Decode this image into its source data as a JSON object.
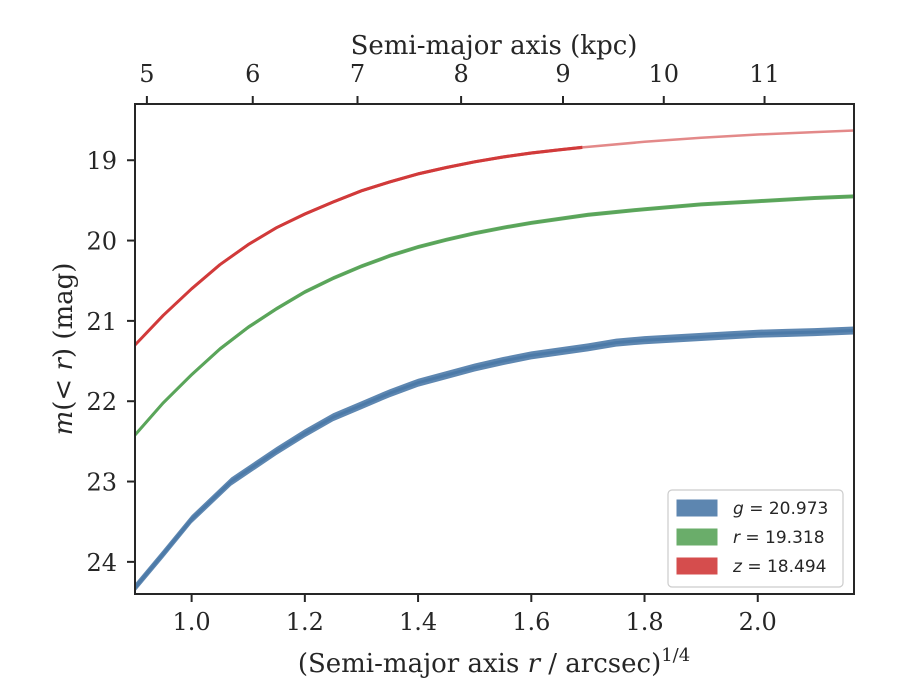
{
  "chart_data": {
    "type": "line",
    "title": "",
    "xlabel": "(Semi-major axis r / arcsec)^{1/4}",
    "xlabel_parts": {
      "pre": "(Semi-major axis ",
      "var": "r",
      "post": " / arcsec)",
      "sup": "1/4"
    },
    "ylabel": "m(< r) (mag)",
    "ylabel_parts": {
      "var": "m",
      "mid": "(< ",
      "var2": "r",
      "post": ") (mag)"
    },
    "top_xlabel": "Semi-major axis (kpc)",
    "xlim": [
      0.9,
      2.17
    ],
    "ylim": [
      24.4,
      18.3
    ],
    "y_inverted": true,
    "x_ticks": [
      "1.0",
      "1.2",
      "1.4",
      "1.6",
      "1.8",
      "2.0"
    ],
    "x_tick_values": [
      1.0,
      1.2,
      1.4,
      1.6,
      1.8,
      2.0
    ],
    "y_ticks": [
      "19",
      "20",
      "21",
      "22",
      "23",
      "24"
    ],
    "y_tick_values": [
      19,
      20,
      21,
      22,
      23,
      24
    ],
    "top_x_ticks": [
      "5",
      "6",
      "7",
      "8",
      "9",
      "10",
      "11"
    ],
    "top_x_tick_values": [
      0.921,
      1.108,
      1.293,
      1.476,
      1.656,
      1.834,
      2.012
    ],
    "grid": false,
    "legend_position": "lower-right",
    "series": [
      {
        "name": "g = 20.973",
        "legend_var": "g",
        "legend_value": "= 20.973",
        "color": "#4c7aa8",
        "band_halfwidth": 0.05,
        "points": [
          [
            0.9,
            24.32
          ],
          [
            0.95,
            23.9
          ],
          [
            1.0,
            23.47
          ],
          [
            1.07,
            23.0
          ],
          [
            1.15,
            22.62
          ],
          [
            1.2,
            22.4
          ],
          [
            1.25,
            22.2
          ],
          [
            1.3,
            22.05
          ],
          [
            1.35,
            21.9
          ],
          [
            1.4,
            21.77
          ],
          [
            1.5,
            21.58
          ],
          [
            1.55,
            21.5
          ],
          [
            1.6,
            21.43
          ],
          [
            1.7,
            21.33
          ],
          [
            1.75,
            21.27
          ],
          [
            1.8,
            21.24
          ],
          [
            1.85,
            21.22
          ],
          [
            1.9,
            21.2
          ],
          [
            1.95,
            21.18
          ],
          [
            2.0,
            21.16
          ],
          [
            2.05,
            21.15
          ],
          [
            2.1,
            21.14
          ],
          [
            2.17,
            21.12
          ]
        ]
      },
      {
        "name": "r = 19.318",
        "legend_var": "r",
        "legend_value": "= 19.318",
        "color": "#5aa55a",
        "band_halfwidth": 0.025,
        "points": [
          [
            0.9,
            22.42
          ],
          [
            0.95,
            22.02
          ],
          [
            1.0,
            21.67
          ],
          [
            1.05,
            21.35
          ],
          [
            1.1,
            21.08
          ],
          [
            1.15,
            20.85
          ],
          [
            1.2,
            20.64
          ],
          [
            1.25,
            20.47
          ],
          [
            1.3,
            20.32
          ],
          [
            1.35,
            20.19
          ],
          [
            1.4,
            20.08
          ],
          [
            1.45,
            19.99
          ],
          [
            1.5,
            19.91
          ],
          [
            1.55,
            19.84
          ],
          [
            1.6,
            19.78
          ],
          [
            1.7,
            19.68
          ],
          [
            1.8,
            19.61
          ],
          [
            1.9,
            19.55
          ],
          [
            2.0,
            19.51
          ],
          [
            2.1,
            19.47
          ],
          [
            2.17,
            19.45
          ]
        ]
      },
      {
        "name": "z = 18.494",
        "legend_var": "z",
        "legend_value": "= 18.494",
        "color": "#d13a3a",
        "band_halfwidth": 0.02,
        "solid_until": 1.69,
        "points": [
          [
            0.9,
            21.3
          ],
          [
            0.95,
            20.93
          ],
          [
            1.0,
            20.6
          ],
          [
            1.05,
            20.3
          ],
          [
            1.1,
            20.05
          ],
          [
            1.15,
            19.84
          ],
          [
            1.2,
            19.67
          ],
          [
            1.25,
            19.52
          ],
          [
            1.3,
            19.38
          ],
          [
            1.35,
            19.27
          ],
          [
            1.4,
            19.17
          ],
          [
            1.45,
            19.09
          ],
          [
            1.5,
            19.02
          ],
          [
            1.55,
            18.96
          ],
          [
            1.6,
            18.91
          ],
          [
            1.65,
            18.87
          ],
          [
            1.69,
            18.84
          ],
          [
            1.8,
            18.77
          ],
          [
            1.9,
            18.72
          ],
          [
            2.0,
            18.68
          ],
          [
            2.1,
            18.65
          ],
          [
            2.17,
            18.63
          ]
        ]
      }
    ]
  }
}
